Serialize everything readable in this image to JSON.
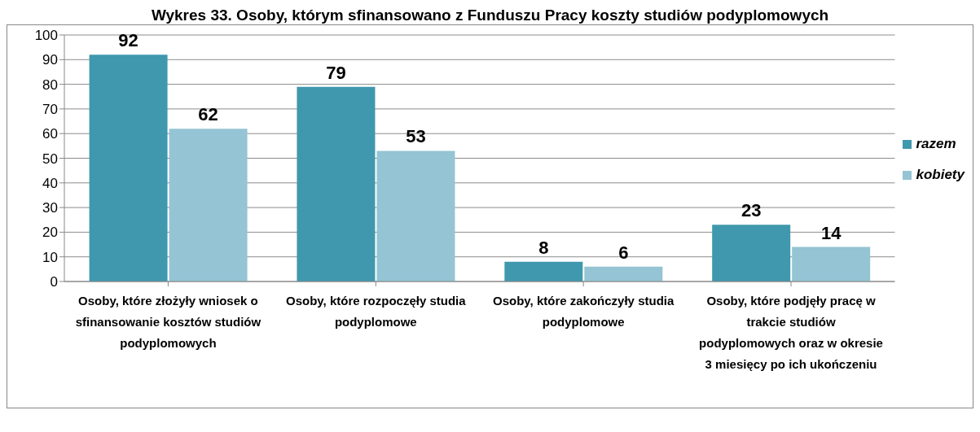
{
  "chart_data": {
    "type": "bar",
    "title": "Wykres 33. Osoby, którym sfinansowano z Funduszu Pracy koszty studiów podyplomowych",
    "categories": [
      "Osoby, które złożyły wniosek o sfinansowanie kosztów studiów podyplomowych",
      "Osoby, które rozpoczęły studia podyplomowe",
      "Osoby, które zakończyły studia podyplomowe",
      "Osoby, które podjęły pracę w trakcie studiów podyplomowych oraz w okresie 3 miesięcy po ich ukończeniu"
    ],
    "series": [
      {
        "name": "razem",
        "color": "#3f98ad",
        "values": [
          92,
          79,
          8,
          23
        ]
      },
      {
        "name": "kobiety",
        "color": "#95c4d4",
        "values": [
          62,
          53,
          6,
          14
        ]
      }
    ],
    "ylim": [
      0,
      100
    ],
    "yticks": [
      0,
      10,
      20,
      30,
      40,
      50,
      60,
      70,
      80,
      90,
      100
    ],
    "grid": "y",
    "legend": "right",
    "data_labels": true
  }
}
